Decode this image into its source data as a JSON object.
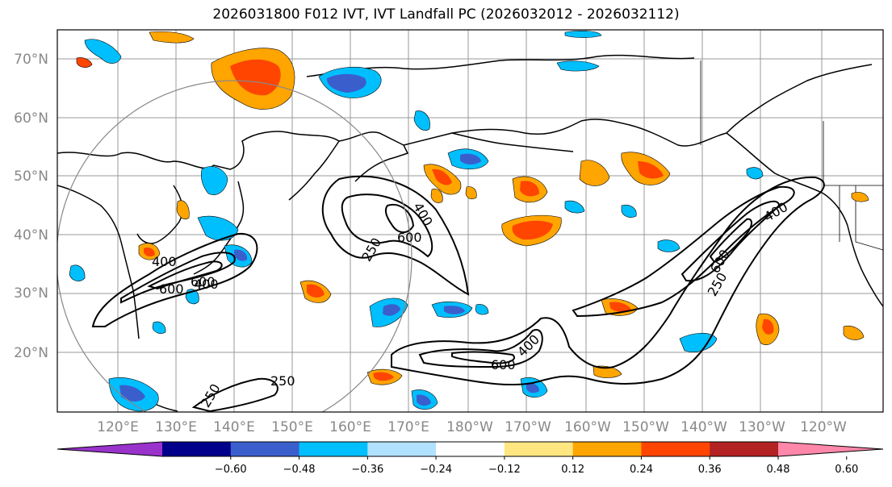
{
  "title": "2026031800 F012 IVT, IVT Landfall PC (2026032012 - 2026032112)",
  "map": {
    "lat_labels": [
      "70°N",
      "60°N",
      "50°N",
      "40°N",
      "30°N",
      "20°N"
    ],
    "lon_labels": [
      "120°E",
      "130°E",
      "140°E",
      "150°E",
      "160°E",
      "170°E",
      "180°W",
      "170°W",
      "160°W",
      "150°W",
      "140°W",
      "130°W",
      "120°W"
    ],
    "contour_labels": [
      "400",
      "600",
      "250",
      "600",
      "400",
      "250",
      "600",
      "400",
      "600",
      "400",
      "250",
      "250",
      "600",
      "400"
    ]
  },
  "colorbar": {
    "ticks": [
      "−0.60",
      "−0.48",
      "−0.36",
      "−0.24",
      "−0.12",
      "0.12",
      "0.24",
      "0.36",
      "0.48",
      "0.60"
    ],
    "colors": [
      "#9933cc",
      "#00008b",
      "#3a5fcd",
      "#00bfff",
      "#b0e2ff",
      "#ffffff",
      "#ffe680",
      "#ffa500",
      "#ff4500",
      "#b22222",
      "#ff88aa"
    ]
  },
  "colors": {
    "frame": "#000000",
    "grid": "#999999",
    "coast": "#000000",
    "ring": "#888888"
  }
}
